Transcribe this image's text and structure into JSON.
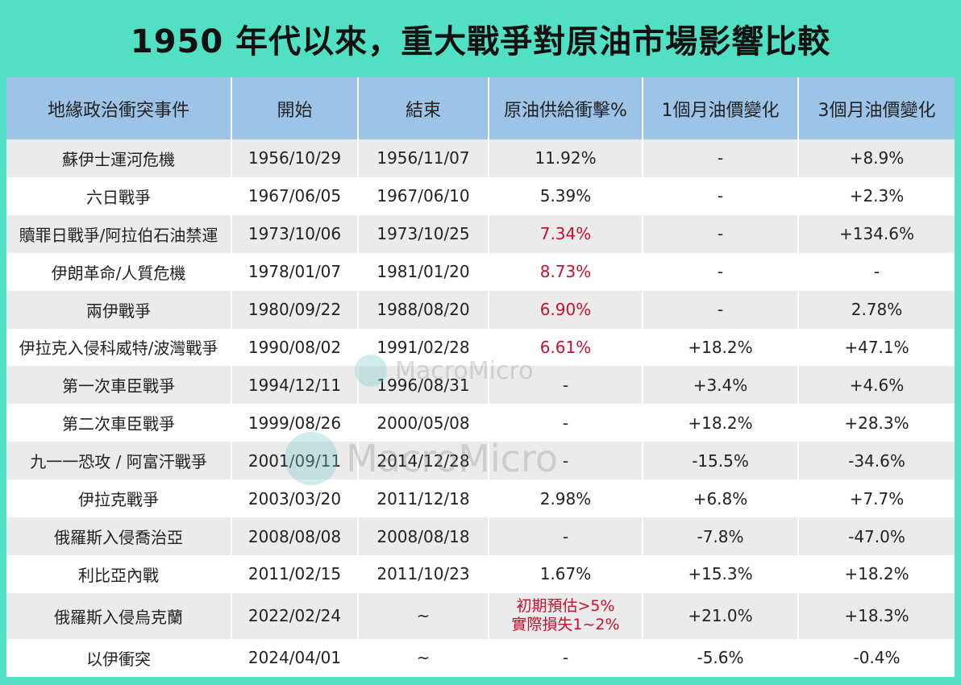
{
  "title": "1950 年代以來，重大戰爭對原油市場影響比較",
  "colors": {
    "background": "#52e0c4",
    "header": "#9dc3e6",
    "highlight": "#c8102e"
  },
  "watermark": "MacroMicro",
  "headers": [
    "地緣政治衝突事件",
    "開始",
    "結束",
    "原油供給衝擊%",
    "1個月油價變化",
    "3個月油價變化"
  ],
  "rows": [
    [
      "蘇伊士運河危機",
      "1956/10/29",
      "1956/11/07",
      "11.92%",
      "-",
      "+8.9%"
    ],
    [
      "六日戰爭",
      "1967/06/05",
      "1967/06/10",
      "5.39%",
      "-",
      "+2.3%"
    ],
    [
      "贖罪日戰爭/阿拉伯石油禁運",
      "1973/10/06",
      "1973/10/25",
      "7.34%",
      "-",
      "+134.6%"
    ],
    [
      "伊朗革命/人質危機",
      "1978/01/07",
      "1981/01/20",
      "8.73%",
      "-",
      "-"
    ],
    [
      "兩伊戰爭",
      "1980/09/22",
      "1988/08/20",
      "6.90%",
      "-",
      "2.78%"
    ],
    [
      "伊拉克入侵科威特/波灣戰爭",
      "1990/08/02",
      "1991/02/28",
      "6.61%",
      "+18.2%",
      "+47.1%"
    ],
    [
      "第一次車臣戰爭",
      "1994/12/11",
      "1996/08/31",
      "-",
      "+3.4%",
      "+4.6%"
    ],
    [
      "第二次車臣戰爭",
      "1999/08/26",
      "2000/05/08",
      "-",
      "+18.2%",
      "+28.3%"
    ],
    [
      "九一一恐攻 / 阿富汗戰爭",
      "2001/09/11",
      "2014/12/28",
      "-",
      "-15.5%",
      "-34.6%"
    ],
    [
      "伊拉克戰爭",
      "2003/03/20",
      "2011/12/18",
      "2.98%",
      "+6.8%",
      "+7.7%"
    ],
    [
      "俄羅斯入侵喬治亞",
      "2008/08/08",
      "2008/08/18",
      "-",
      "-7.8%",
      "-47.0%"
    ],
    [
      "利比亞內戰",
      "2011/02/15",
      "2011/10/23",
      "1.67%",
      "+15.3%",
      "+18.2%"
    ],
    [
      "俄羅斯入侵烏克蘭",
      "2022/02/24",
      "~",
      "初期預估>5%",
      "+21.0%",
      "+18.3%"
    ],
    [
      "以伊衝突",
      "2024/04/01",
      "~",
      "-",
      "-5.6%",
      "-0.4%"
    ]
  ],
  "extra_note": {
    "row": 12,
    "line2": "實際損失1~2%"
  },
  "red_cells": [
    [
      2,
      3
    ],
    [
      3,
      3
    ],
    [
      4,
      3
    ],
    [
      5,
      3
    ],
    [
      12,
      3
    ]
  ]
}
